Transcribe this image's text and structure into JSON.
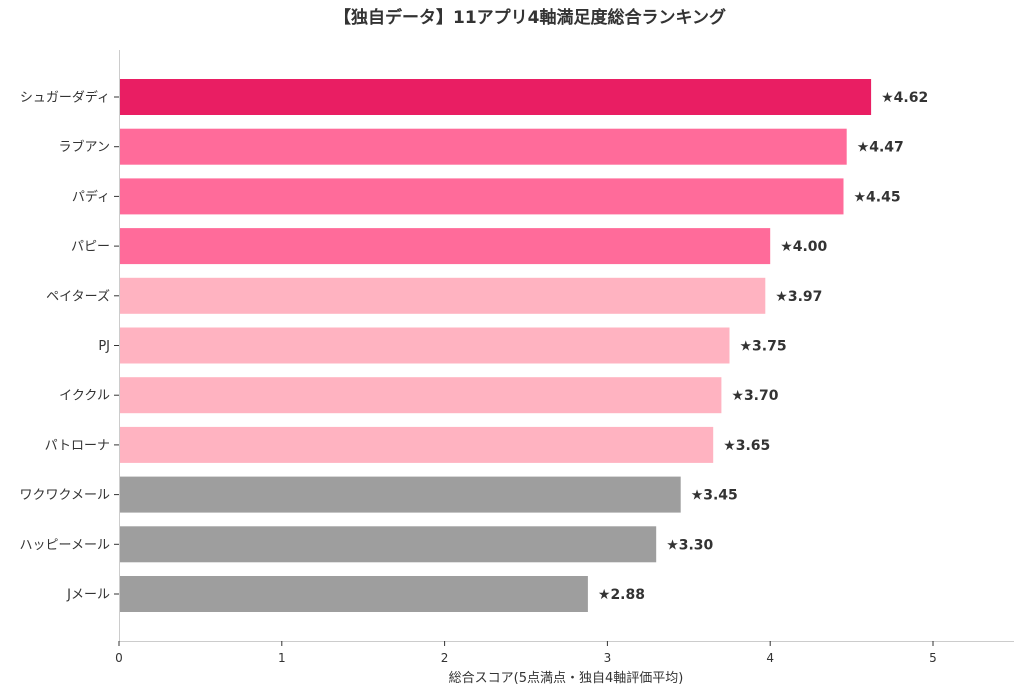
{
  "chart_data": {
    "type": "bar",
    "orientation": "horizontal",
    "title": "【独自データ】11アプリ4軸満足度総合ランキング",
    "xlabel": "総合スコア(5点満点・独自4軸評価平均)",
    "ylabel": "",
    "xlim": [
      0,
      5
    ],
    "x_ticks": [
      "0",
      "1",
      "2",
      "3",
      "4",
      "5"
    ],
    "grid": false,
    "categories": [
      "シュガーダディ",
      "ラブアン",
      "パディ",
      "パピー",
      "ペイターズ",
      "PJ",
      "イククル",
      "パトローナ",
      "ワクワクメール",
      "ハッピーメール",
      "Jメール"
    ],
    "values": [
      4.62,
      4.47,
      4.45,
      4.0,
      3.97,
      3.75,
      3.7,
      3.65,
      3.45,
      3.3,
      2.88
    ],
    "value_labels": [
      "★4.62",
      "★4.47",
      "★4.45",
      "★4.00",
      "★3.97",
      "★3.75",
      "★3.70",
      "★3.65",
      "★3.45",
      "★3.30",
      "★2.88"
    ],
    "bar_colors": [
      "#e91e63",
      "#ff6b9a",
      "#ff6b9a",
      "#ff6b9a",
      "#ffb3c1",
      "#ffb3c1",
      "#ffb3c1",
      "#ffb3c1",
      "#9e9e9e",
      "#9e9e9e",
      "#9e9e9e"
    ]
  }
}
